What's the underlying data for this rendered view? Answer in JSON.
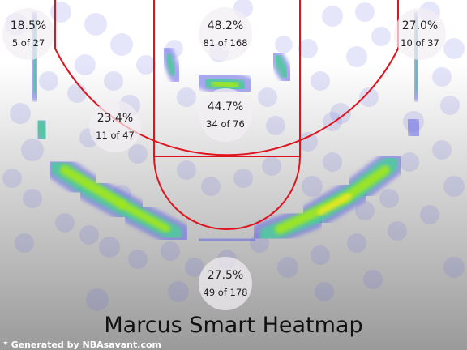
{
  "chart_data": {
    "type": "heatmap",
    "title": "Marcus Smart Heatmap",
    "credit": "* Generated by NBAsavant.com",
    "zones": [
      {
        "name": "left-corner-three",
        "pct": "18.5%",
        "made": 5,
        "attempts": 27,
        "label": "5 of 27"
      },
      {
        "name": "right-corner-three",
        "pct": "27.0%",
        "made": 10,
        "attempts": 37,
        "label": "10 of 37"
      },
      {
        "name": "restricted-area",
        "pct": "48.2%",
        "made": 81,
        "attempts": 168,
        "label": "81 of 168"
      },
      {
        "name": "paint",
        "pct": "44.7%",
        "made": 34,
        "attempts": 76,
        "label": "34 of 76"
      },
      {
        "name": "mid-range",
        "pct": "23.4%",
        "made": 11,
        "attempts": 47,
        "label": "11 of 47"
      },
      {
        "name": "above-break-three",
        "pct": "27.5%",
        "made": 49,
        "attempts": 178,
        "label": "49 of 178"
      }
    ],
    "colors": {
      "court_lines": "#e0141e",
      "background_top": "#ffffff",
      "background_bottom": "#9a9a9a",
      "sparse": "#6464e6",
      "low": "#50c8a0",
      "mid": "#a0e61e",
      "high": "#f0e628",
      "hot": "#f03c28"
    }
  }
}
